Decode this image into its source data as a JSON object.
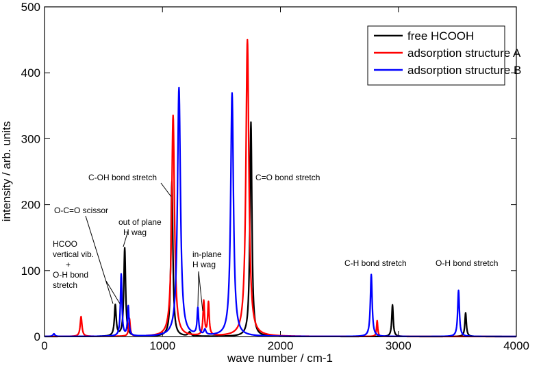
{
  "chart_data": {
    "type": "line",
    "xlabel": "wave number / cm-1",
    "ylabel": "intensity / arb. units",
    "xlim": [
      0,
      4000
    ],
    "ylim": [
      0,
      500
    ],
    "xticks": [
      0,
      1000,
      2000,
      3000,
      4000
    ],
    "yticks": [
      0,
      100,
      200,
      300,
      400,
      500
    ],
    "grid": false,
    "legend_position": "top-right",
    "series": [
      {
        "name": "free HCOOH",
        "color": "#000000",
        "peaks": [
          {
            "x": 600,
            "y": 47,
            "w": 18
          },
          {
            "x": 680,
            "y": 134,
            "w": 18
          },
          {
            "x": 1080,
            "y": 235,
            "w": 20
          },
          {
            "x": 1230,
            "y": 6,
            "w": 25
          },
          {
            "x": 1750,
            "y": 325,
            "w": 20
          },
          {
            "x": 2950,
            "y": 48,
            "w": 15
          },
          {
            "x": 3570,
            "y": 36,
            "w": 15
          }
        ]
      },
      {
        "name": "adsorption structure A",
        "color": "#ff0000",
        "peaks": [
          {
            "x": 310,
            "y": 30,
            "w": 18
          },
          {
            "x": 720,
            "y": 27,
            "w": 15
          },
          {
            "x": 1090,
            "y": 335,
            "w": 28
          },
          {
            "x": 1350,
            "y": 52,
            "w": 15
          },
          {
            "x": 1390,
            "y": 50,
            "w": 15
          },
          {
            "x": 1720,
            "y": 450,
            "w": 30
          },
          {
            "x": 2820,
            "y": 24,
            "w": 12
          }
        ]
      },
      {
        "name": "adsorption structure B",
        "color": "#0000ff",
        "peaks": [
          {
            "x": 80,
            "y": 4,
            "w": 20
          },
          {
            "x": 650,
            "y": 94,
            "w": 15
          },
          {
            "x": 710,
            "y": 45,
            "w": 15
          },
          {
            "x": 1140,
            "y": 377,
            "w": 30
          },
          {
            "x": 1300,
            "y": 40,
            "w": 15
          },
          {
            "x": 1360,
            "y": 8,
            "w": 20
          },
          {
            "x": 1590,
            "y": 369,
            "w": 28
          },
          {
            "x": 2770,
            "y": 94,
            "w": 18
          },
          {
            "x": 3510,
            "y": 70,
            "w": 17
          }
        ]
      }
    ],
    "annotations": [
      {
        "lines": [
          "C-OH bond stretch"
        ],
        "x": 1060,
        "y": 233
      },
      {
        "lines": [
          "C=O bond stretch"
        ],
        "x": 1760,
        "y": 233
      },
      {
        "lines": [
          "O-C=O scissor"
        ],
        "x": 260,
        "y": 190
      },
      {
        "lines": [
          "out of plane",
          "H wag"
        ],
        "x": 700,
        "y": 190
      },
      {
        "lines": [
          "HCOO",
          "vertical vib.",
          "+",
          "O-H bond",
          "stretch"
        ],
        "x": 75,
        "y": 137
      },
      {
        "lines": [
          "in-plane",
          "H wag"
        ],
        "x": 1310,
        "y": 125
      },
      {
        "lines": [
          "C-H bond stretch"
        ],
        "x": 2790,
        "y": 105
      },
      {
        "lines": [
          "O-H bond stretch"
        ],
        "x": 3540,
        "y": 105
      }
    ]
  }
}
